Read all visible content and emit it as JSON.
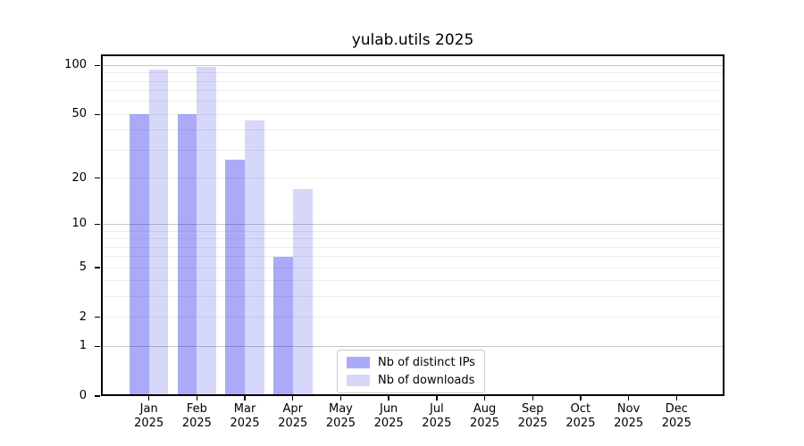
{
  "title": "yulab.utils 2025",
  "colors": {
    "ips_bar": "rgba(8,8,238,0.345)",
    "downloads_bar": "rgba(0,0,215,0.155)",
    "grid_major": "#c6c6c6",
    "grid_minor": "#ededed",
    "axis": "#000000",
    "legend_border": "#cbcbcb"
  },
  "legend": {
    "items": [
      {
        "label": "Nb of distinct IPs"
      },
      {
        "label": "Nb of downloads"
      }
    ]
  },
  "chart_data": {
    "type": "bar",
    "title": "yulab.utils 2025",
    "categories": [
      "Jan 2025",
      "Feb 2025",
      "Mar 2025",
      "Apr 2025",
      "May 2025",
      "Jun 2025",
      "Jul 2025",
      "Aug 2025",
      "Sep 2025",
      "Oct 2025",
      "Nov 2025",
      "Dec 2025"
    ],
    "series": [
      {
        "name": "Nb of distinct IPs",
        "values": [
          50,
          50,
          26,
          6,
          0,
          0,
          0,
          0,
          0,
          0,
          0,
          0
        ]
      },
      {
        "name": "Nb of downloads",
        "values": [
          94,
          98,
          46,
          17,
          0,
          0,
          0,
          0,
          0,
          0,
          0,
          0
        ]
      }
    ],
    "xlabel": "",
    "ylabel": "",
    "yscale": "log1p",
    "ylim": [
      0,
      117
    ],
    "yticks": [
      0,
      1,
      2,
      5,
      10,
      20,
      50,
      100
    ],
    "grid": "both",
    "legend_position": "lower center"
  }
}
